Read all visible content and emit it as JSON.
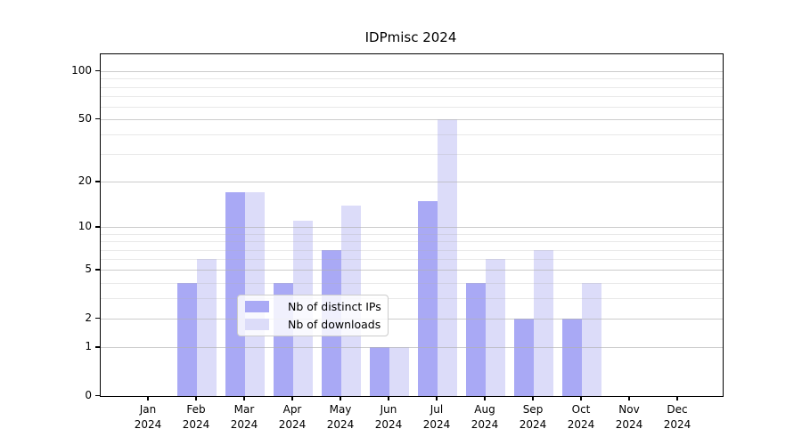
{
  "title": "IDPmisc 2024",
  "chart_data": {
    "type": "bar",
    "title": "IDPmisc 2024",
    "categories": [
      "Jan",
      "Feb",
      "Mar",
      "Apr",
      "May",
      "Jun",
      "Jul",
      "Aug",
      "Sep",
      "Oct",
      "Nov",
      "Dec"
    ],
    "x_tick_year": "2024",
    "series": [
      {
        "name": "Nb of distinct IPs",
        "color": "#a9a9f5",
        "values": [
          0,
          4,
          17,
          4,
          7,
          1,
          15,
          4,
          2,
          2,
          0,
          0
        ]
      },
      {
        "name": "Nb of downloads",
        "color": "#dcdcf9",
        "values": [
          0,
          6,
          17,
          11,
          14,
          1,
          50,
          6,
          7,
          4,
          0,
          0
        ]
      }
    ],
    "yscale": "log10(value+1)",
    "y_major_ticks": [
      0,
      1,
      2,
      5,
      10,
      20,
      50,
      100
    ],
    "y_minor_gridlines": [
      3,
      4,
      6,
      7,
      8,
      9,
      30,
      40,
      60,
      70,
      80,
      90
    ],
    "ylim": [
      0,
      124
    ],
    "grid": true,
    "legend_position": "lower center",
    "axis_color": "#000000",
    "grid_major_color": "#cccccc",
    "grid_minor_color": "#ececec"
  }
}
